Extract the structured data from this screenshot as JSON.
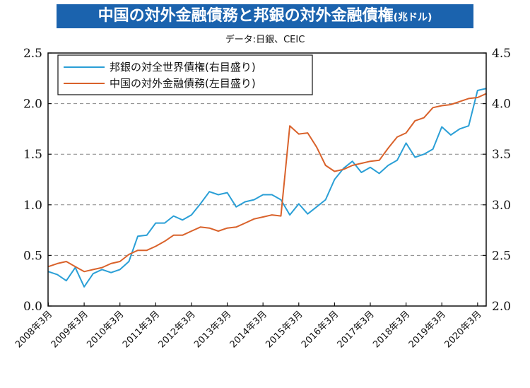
{
  "title": "中国の対外金融債務と邦銀の対外金融債権",
  "title_unit": "(兆ドル)",
  "source": "データ:日銀、CEIC",
  "chart_data": {
    "type": "line",
    "categories": [
      "2008年3月",
      "2009年3月",
      "2010年3月",
      "2011年3月",
      "2012年3月",
      "2013年3月",
      "2014年3月",
      "2015年3月",
      "2016年3月",
      "2017年3月",
      "2018年3月",
      "2019年3月",
      "2020年3月"
    ],
    "left_axis": {
      "ylim": [
        0,
        2.5
      ],
      "ticks": [
        "0.0",
        "0.5",
        "1.0",
        "1.5",
        "2.0",
        "2.5"
      ]
    },
    "right_axis": {
      "ylim": [
        2.0,
        4.5
      ],
      "ticks": [
        "2.0",
        "2.5",
        "3.0",
        "3.5",
        "4.0",
        "4.5"
      ]
    },
    "grid": true,
    "legend_position": "top-left",
    "series": [
      {
        "name": "邦銀の対全世界債権(右目盛り)",
        "axis": "right",
        "color": "#2a9fd6",
        "x": [
          2008.0,
          2008.25,
          2008.5,
          2008.75,
          2009.0,
          2009.25,
          2009.5,
          2009.75,
          2010.0,
          2010.25,
          2010.5,
          2010.75,
          2011.0,
          2011.25,
          2011.5,
          2011.75,
          2012.0,
          2012.25,
          2012.5,
          2012.75,
          2013.0,
          2013.25,
          2013.5,
          2013.75,
          2014.0,
          2014.25,
          2014.5,
          2014.75,
          2015.0,
          2015.25,
          2015.5,
          2015.75,
          2016.0,
          2016.25,
          2016.5,
          2016.75,
          2017.0,
          2017.25,
          2017.5,
          2017.75,
          2018.0,
          2018.25,
          2018.5,
          2018.75,
          2019.0,
          2019.25,
          2019.5,
          2019.75,
          2020.0,
          2020.25
        ],
        "y": [
          2.34,
          2.31,
          2.25,
          2.38,
          2.19,
          2.32,
          2.36,
          2.33,
          2.36,
          2.44,
          2.69,
          2.7,
          2.82,
          2.82,
          2.89,
          2.85,
          2.9,
          3.01,
          3.13,
          3.1,
          3.12,
          2.98,
          3.03,
          3.05,
          3.1,
          3.1,
          3.05,
          2.9,
          3.01,
          2.91,
          2.98,
          3.05,
          3.25,
          3.36,
          3.43,
          3.32,
          3.37,
          3.31,
          3.39,
          3.44,
          3.61,
          3.47,
          3.5,
          3.55,
          3.77,
          3.69,
          3.75,
          3.78,
          4.13,
          4.15
        ]
      },
      {
        "name": "中国の対外金融債務(左目盛り)",
        "axis": "left",
        "color": "#d9622b",
        "x": [
          2008.0,
          2008.25,
          2008.5,
          2008.75,
          2009.0,
          2009.25,
          2009.5,
          2009.75,
          2010.0,
          2010.25,
          2010.5,
          2010.75,
          2011.0,
          2011.25,
          2011.5,
          2011.75,
          2012.0,
          2012.25,
          2012.5,
          2012.75,
          2013.0,
          2013.25,
          2013.5,
          2013.75,
          2014.0,
          2014.25,
          2014.5,
          2014.75,
          2015.0,
          2015.25,
          2015.5,
          2015.75,
          2016.0,
          2016.25,
          2016.5,
          2016.75,
          2017.0,
          2017.25,
          2017.5,
          2017.75,
          2018.0,
          2018.25,
          2018.5,
          2018.75,
          2019.0,
          2019.25,
          2019.5,
          2019.75,
          2020.0,
          2020.25
        ],
        "y": [
          0.39,
          0.42,
          0.44,
          0.39,
          0.34,
          0.36,
          0.38,
          0.42,
          0.44,
          0.51,
          0.55,
          0.55,
          0.59,
          0.64,
          0.7,
          0.7,
          0.74,
          0.78,
          0.77,
          0.74,
          0.77,
          0.78,
          0.82,
          0.86,
          0.88,
          0.9,
          0.89,
          1.78,
          1.7,
          1.71,
          1.57,
          1.39,
          1.33,
          1.35,
          1.39,
          1.41,
          1.43,
          1.44,
          1.56,
          1.67,
          1.71,
          1.83,
          1.86,
          1.96,
          1.98,
          1.99,
          2.02,
          2.05,
          2.06,
          2.1
        ]
      }
    ]
  }
}
